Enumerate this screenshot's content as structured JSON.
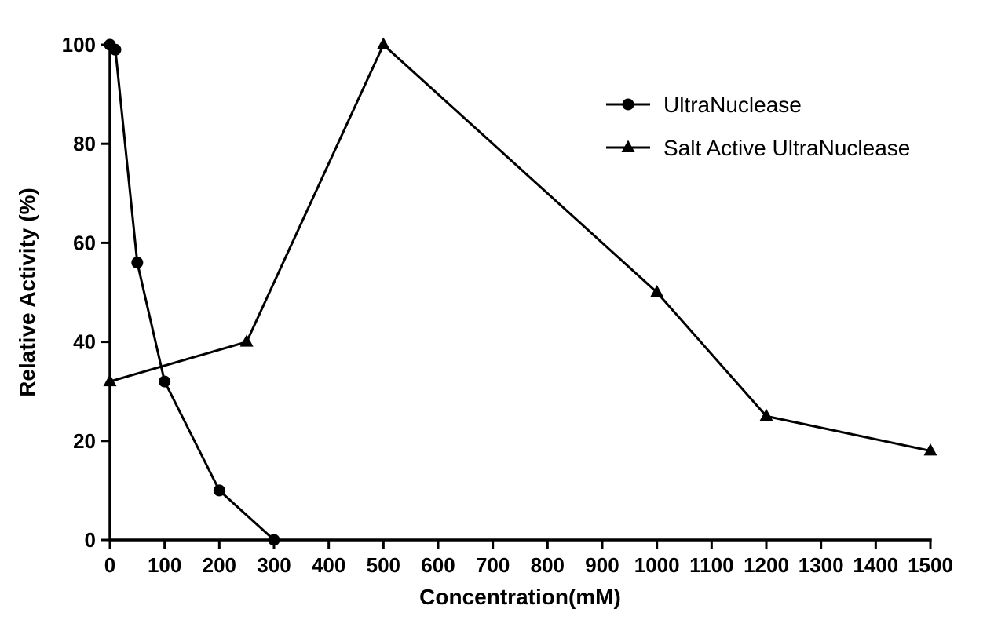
{
  "figure": {
    "background": "#ffffff",
    "axis_color": "#000000"
  },
  "chart_data": {
    "type": "line",
    "title": "",
    "xlabel": "Concentration(mM)",
    "ylabel": "Relative Activity (%)",
    "xlim": [
      0,
      1500
    ],
    "ylim": [
      0,
      100
    ],
    "x_ticks": [
      0,
      100,
      200,
      300,
      400,
      500,
      600,
      700,
      800,
      900,
      1000,
      1100,
      1200,
      1300,
      1400,
      1500
    ],
    "y_ticks": [
      0,
      20,
      40,
      60,
      80,
      100
    ],
    "grid": false,
    "legend": {
      "position": "top-right",
      "entries": [
        {
          "label": "UltraNuclease",
          "marker": "circle"
        },
        {
          "label": "Salt Active UltraNuclease",
          "marker": "triangle"
        }
      ]
    },
    "series": [
      {
        "name": "UltraNuclease",
        "marker": "circle",
        "color": "#000000",
        "points": [
          [
            0,
            100
          ],
          [
            10,
            99
          ],
          [
            50,
            56
          ],
          [
            100,
            32
          ],
          [
            200,
            10
          ],
          [
            300,
            0
          ]
        ]
      },
      {
        "name": "Salt Active UltraNuclease",
        "marker": "triangle",
        "color": "#000000",
        "points": [
          [
            0,
            32
          ],
          [
            250,
            40
          ],
          [
            500,
            100
          ],
          [
            1000,
            50
          ],
          [
            1200,
            25
          ],
          [
            1500,
            18
          ]
        ]
      }
    ]
  }
}
